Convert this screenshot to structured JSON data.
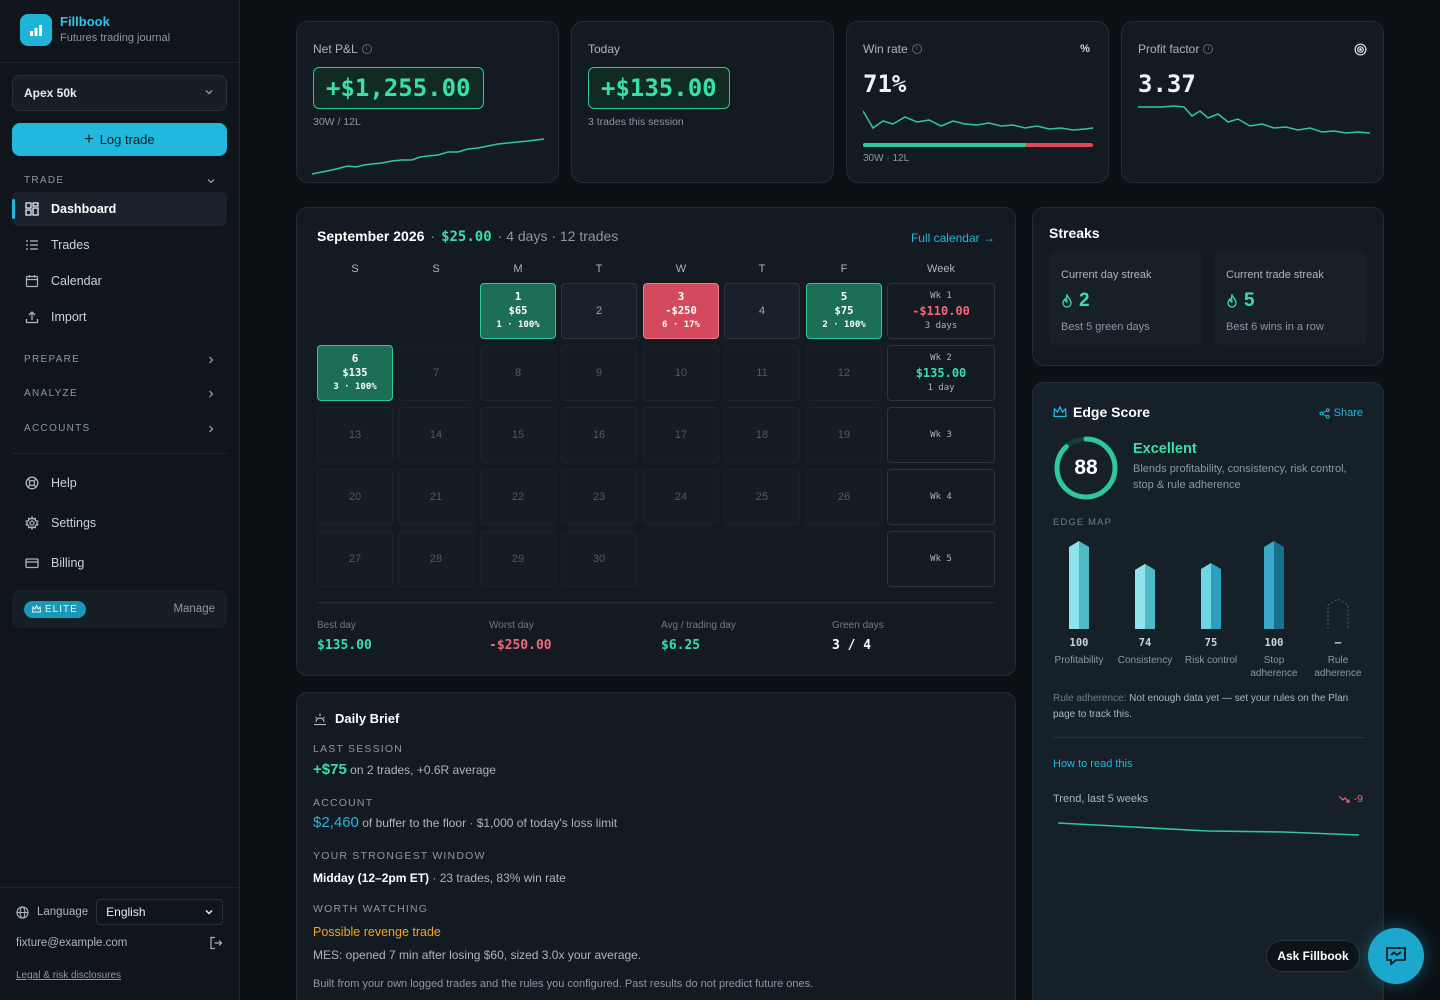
{
  "brand": {
    "name": "Fillbook",
    "subtitle": "Futures trading journal"
  },
  "account_select": {
    "value": "Apex 50k"
  },
  "log_trade_label": "Log trade",
  "nav": {
    "trade_label": "TRADE",
    "items": [
      {
        "label": "Dashboard",
        "icon": "grid-icon",
        "active": true
      },
      {
        "label": "Trades",
        "icon": "list-icon"
      },
      {
        "label": "Calendar",
        "icon": "calendar-icon"
      },
      {
        "label": "Import",
        "icon": "upload-icon"
      }
    ],
    "sections": [
      "PREPARE",
      "ANALYZE",
      "ACCOUNTS"
    ],
    "bottom": [
      {
        "label": "Help",
        "icon": "lifebuoy-icon"
      },
      {
        "label": "Settings",
        "icon": "gear-icon"
      },
      {
        "label": "Billing",
        "icon": "credit-card-icon"
      }
    ]
  },
  "plan": {
    "badge": "ELITE",
    "manage": "Manage"
  },
  "language": {
    "label": "Language",
    "value": "English"
  },
  "user_email": "fixture@example.com",
  "legal": "Legal & risk disclosures",
  "stats": {
    "net_pnl": {
      "label": "Net P&L",
      "value": "+$1,255.00",
      "sub": "30W / 12L"
    },
    "today": {
      "label": "Today",
      "value": "+$135.00",
      "sub": "3 trades this session"
    },
    "win_rate": {
      "label": "Win rate",
      "value": "71%",
      "sub": "30W · 12L",
      "win_fraction": 0.71,
      "icon": "percent-icon"
    },
    "profit_factor": {
      "label": "Profit factor",
      "value": "3.37",
      "icon": "target-icon"
    }
  },
  "calendar": {
    "month": "September 2026",
    "pnl": "$25.00",
    "days_text": "· 4 days · 12 trades",
    "full_link": "Full calendar",
    "dow": [
      "S",
      "S",
      "M",
      "T",
      "W",
      "T",
      "F",
      "Week"
    ],
    "trade_days": [
      {
        "d": "1",
        "amt": "$65",
        "wr": "1 · 100%"
      },
      {
        "d": "3",
        "amt": "-$250",
        "wr": "6 · 17%"
      },
      {
        "d": "5",
        "amt": "$75",
        "wr": "2 · 100%"
      },
      {
        "d": "6",
        "amt": "$135",
        "wr": "3 · 100%"
      }
    ],
    "plain_days": [
      "2",
      "4",
      "7",
      "8",
      "9",
      "10",
      "11",
      "12",
      "13",
      "14",
      "15",
      "16",
      "17",
      "18",
      "19",
      "20",
      "21",
      "22",
      "23",
      "24",
      "25",
      "26",
      "27",
      "28",
      "29",
      "30"
    ],
    "weeks": [
      {
        "label": "Wk 1",
        "value": "-$110.00",
        "days": "3 days"
      },
      {
        "label": "Wk 2",
        "value": "$135.00",
        "days": "1 day"
      },
      {
        "label": "Wk 3"
      },
      {
        "label": "Wk 4"
      },
      {
        "label": "Wk 5"
      }
    ],
    "footer": [
      {
        "label": "Best day",
        "value": "$135.00"
      },
      {
        "label": "Worst day",
        "value": "-$250.00"
      },
      {
        "label": "Avg / trading day",
        "value": "$6.25"
      },
      {
        "label": "Green days",
        "value": "3 / 4"
      }
    ]
  },
  "daily_brief": {
    "title": "Daily Brief",
    "last_session_label": "LAST SESSION",
    "last_session_value": "+$75",
    "last_session_text": "on 2 trades, +0.6R average",
    "account_label": "ACCOUNT",
    "account_value": "$2,460",
    "account_text": "of buffer to the floor · $1,000 of today's loss limit",
    "window_label": "YOUR STRONGEST WINDOW",
    "window_value": "Midday (12–2pm ET)",
    "window_text": "· 23 trades, 83% win rate",
    "watch_label": "WORTH WATCHING",
    "watch_title": "Possible revenge trade",
    "watch_text": "MES: opened 7 min after losing $60, sized 3.0x your average.",
    "footnote": "Built from your own logged trades and the rules you configured. Past results do not predict future ones."
  },
  "streaks": {
    "title": "Streaks",
    "day": {
      "label": "Current day streak",
      "value": "2",
      "best": "Best 5 green days"
    },
    "trade": {
      "label": "Current trade streak",
      "value": "5",
      "best": "Best 6 wins in a row"
    }
  },
  "edge": {
    "title": "Edge Score",
    "share": "Share",
    "score": "88",
    "score_value": 88,
    "rating": "Excellent",
    "description": "Blends profitability, consistency, risk control, stop & rule adherence",
    "map_label": "EDGE MAP",
    "bars": [
      {
        "value": "100",
        "label": "Profitability",
        "score": 100
      },
      {
        "value": "74",
        "label": "Consistency",
        "score": 74
      },
      {
        "value": "75",
        "label": "Risk control",
        "score": 75
      },
      {
        "value": "100",
        "label": "Stop adherence",
        "score": 100
      },
      {
        "value": "–",
        "label": "Rule adherence",
        "score": null
      }
    ],
    "note_label": "Rule adherence:",
    "note_text": "Not enough data yet — set your rules on the Plan page to track this.",
    "how_link": "How to read this",
    "trend_label": "Trend, last 5 weeks",
    "trend_value": "-9"
  },
  "ask_label": "Ask Fillbook",
  "colors": {
    "accent": "#22b7dc",
    "positive": "#38e0a5",
    "negative": "#f0687a",
    "warning": "#f5a524"
  }
}
